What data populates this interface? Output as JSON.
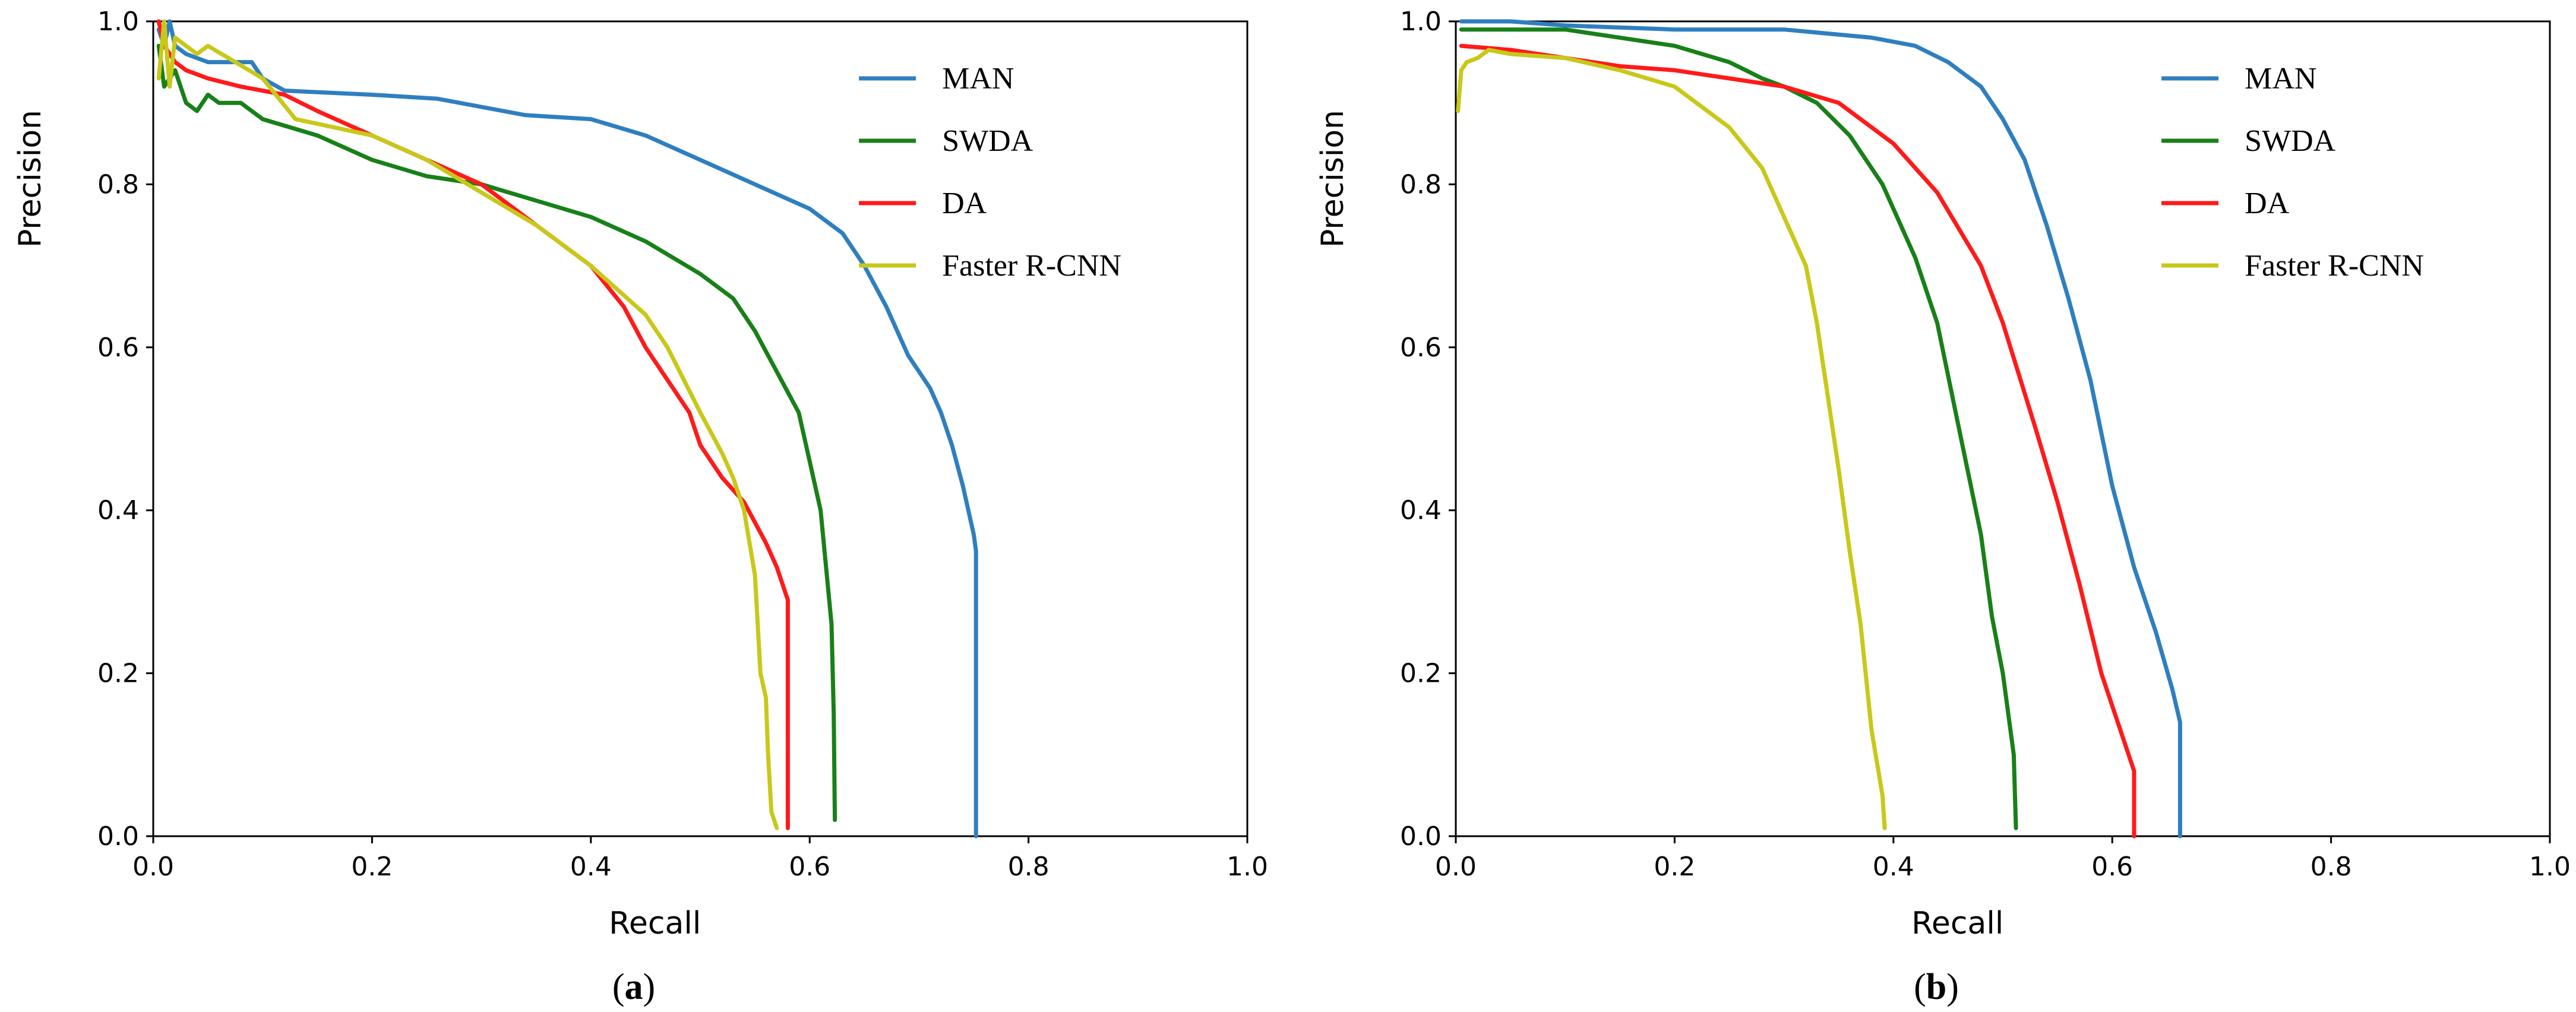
{
  "colors": {
    "MAN": "#2f7fbf",
    "SWDA": "#188018",
    "DA": "#ff1a1a",
    "Faster R-CNN": "#c8c81a"
  },
  "chart_data": [
    {
      "type": "line",
      "caption_letter": "a",
      "caption_open": "(",
      "caption_close": ")",
      "xlabel": "Recall",
      "ylabel": "Precision",
      "xlim": [
        0,
        1
      ],
      "ylim": [
        0,
        1
      ],
      "xticks": [
        "0.0",
        "0.2",
        "0.4",
        "0.6",
        "0.8",
        "1.0"
      ],
      "yticks": [
        "0.0",
        "0.2",
        "0.4",
        "0.6",
        "0.8",
        "1.0"
      ],
      "legend_position": "top-right",
      "series": [
        {
          "name": "MAN",
          "x": [
            0.005,
            0.01,
            0.015,
            0.02,
            0.03,
            0.05,
            0.09,
            0.1,
            0.12,
            0.2,
            0.26,
            0.3,
            0.34,
            0.4,
            0.45,
            0.5,
            0.55,
            0.6,
            0.63,
            0.65,
            0.67,
            0.69,
            0.71,
            0.72,
            0.73,
            0.74,
            0.75,
            0.752,
            0.752
          ],
          "y": [
            0.99,
            0.97,
            1.0,
            0.97,
            0.96,
            0.95,
            0.95,
            0.93,
            0.915,
            0.91,
            0.905,
            0.895,
            0.885,
            0.88,
            0.86,
            0.83,
            0.8,
            0.77,
            0.74,
            0.7,
            0.65,
            0.59,
            0.55,
            0.52,
            0.48,
            0.43,
            0.37,
            0.35,
            0.0
          ]
        },
        {
          "name": "SWDA",
          "x": [
            0.005,
            0.01,
            0.02,
            0.03,
            0.04,
            0.05,
            0.06,
            0.08,
            0.1,
            0.15,
            0.2,
            0.25,
            0.3,
            0.35,
            0.4,
            0.45,
            0.5,
            0.53,
            0.55,
            0.57,
            0.59,
            0.6,
            0.61,
            0.615,
            0.62,
            0.622,
            0.623
          ],
          "y": [
            0.97,
            0.92,
            0.94,
            0.9,
            0.89,
            0.91,
            0.9,
            0.9,
            0.88,
            0.86,
            0.83,
            0.81,
            0.8,
            0.78,
            0.76,
            0.73,
            0.69,
            0.66,
            0.62,
            0.57,
            0.52,
            0.46,
            0.4,
            0.33,
            0.26,
            0.15,
            0.02
          ]
        },
        {
          "name": "DA",
          "x": [
            0.005,
            0.01,
            0.02,
            0.03,
            0.05,
            0.08,
            0.12,
            0.15,
            0.2,
            0.25,
            0.3,
            0.35,
            0.4,
            0.43,
            0.45,
            0.47,
            0.49,
            0.5,
            0.52,
            0.54,
            0.56,
            0.57,
            0.58,
            0.58
          ],
          "y": [
            1.0,
            0.97,
            0.95,
            0.94,
            0.93,
            0.92,
            0.91,
            0.89,
            0.86,
            0.83,
            0.8,
            0.75,
            0.7,
            0.65,
            0.6,
            0.56,
            0.52,
            0.48,
            0.44,
            0.41,
            0.36,
            0.33,
            0.29,
            0.01
          ]
        },
        {
          "name": "Faster R-CNN",
          "x": [
            0.005,
            0.01,
            0.015,
            0.02,
            0.04,
            0.05,
            0.1,
            0.13,
            0.2,
            0.25,
            0.3,
            0.35,
            0.4,
            0.45,
            0.47,
            0.5,
            0.52,
            0.53,
            0.54,
            0.55,
            0.555,
            0.56,
            0.562,
            0.565,
            0.57
          ],
          "y": [
            0.93,
            1.0,
            0.92,
            0.98,
            0.96,
            0.97,
            0.93,
            0.88,
            0.86,
            0.83,
            0.79,
            0.75,
            0.7,
            0.64,
            0.6,
            0.52,
            0.47,
            0.44,
            0.4,
            0.32,
            0.2,
            0.17,
            0.1,
            0.03,
            0.01
          ]
        }
      ]
    },
    {
      "type": "line",
      "caption_letter": "b",
      "caption_open": "(",
      "caption_close": ")",
      "xlabel": "Recall",
      "ylabel": "Precision",
      "xlim": [
        0,
        1
      ],
      "ylim": [
        0,
        1
      ],
      "xticks": [
        "0.0",
        "0.2",
        "0.4",
        "0.6",
        "0.8",
        "1.0"
      ],
      "yticks": [
        "0.0",
        "0.2",
        "0.4",
        "0.6",
        "0.8",
        "1.0"
      ],
      "legend_position": "top-right",
      "series": [
        {
          "name": "MAN",
          "x": [
            0.005,
            0.05,
            0.1,
            0.2,
            0.3,
            0.38,
            0.42,
            0.45,
            0.48,
            0.5,
            0.52,
            0.54,
            0.56,
            0.58,
            0.6,
            0.62,
            0.64,
            0.655,
            0.662,
            0.662
          ],
          "y": [
            1.0,
            1.0,
            0.995,
            0.99,
            0.99,
            0.98,
            0.97,
            0.95,
            0.92,
            0.88,
            0.83,
            0.75,
            0.66,
            0.56,
            0.43,
            0.33,
            0.25,
            0.18,
            0.14,
            0.0
          ]
        },
        {
          "name": "SWDA",
          "x": [
            0.005,
            0.05,
            0.1,
            0.15,
            0.2,
            0.25,
            0.28,
            0.3,
            0.33,
            0.36,
            0.39,
            0.42,
            0.44,
            0.46,
            0.48,
            0.49,
            0.5,
            0.51,
            0.512
          ],
          "y": [
            0.99,
            0.99,
            0.99,
            0.98,
            0.97,
            0.95,
            0.93,
            0.92,
            0.9,
            0.86,
            0.8,
            0.71,
            0.63,
            0.5,
            0.37,
            0.27,
            0.2,
            0.1,
            0.01
          ]
        },
        {
          "name": "DA",
          "x": [
            0.005,
            0.05,
            0.1,
            0.15,
            0.2,
            0.25,
            0.3,
            0.35,
            0.4,
            0.44,
            0.48,
            0.5,
            0.53,
            0.55,
            0.57,
            0.59,
            0.61,
            0.62,
            0.62
          ],
          "y": [
            0.97,
            0.965,
            0.955,
            0.945,
            0.94,
            0.93,
            0.92,
            0.9,
            0.85,
            0.79,
            0.7,
            0.63,
            0.5,
            0.41,
            0.31,
            0.2,
            0.12,
            0.08,
            0.0
          ]
        },
        {
          "name": "Faster R-CNN",
          "x": [
            0.002,
            0.005,
            0.01,
            0.02,
            0.03,
            0.05,
            0.1,
            0.15,
            0.2,
            0.25,
            0.28,
            0.3,
            0.32,
            0.33,
            0.34,
            0.35,
            0.36,
            0.37,
            0.38,
            0.39,
            0.392
          ],
          "y": [
            0.89,
            0.94,
            0.95,
            0.955,
            0.965,
            0.96,
            0.955,
            0.94,
            0.92,
            0.87,
            0.82,
            0.76,
            0.7,
            0.63,
            0.54,
            0.45,
            0.35,
            0.26,
            0.13,
            0.05,
            0.01
          ]
        }
      ]
    }
  ]
}
